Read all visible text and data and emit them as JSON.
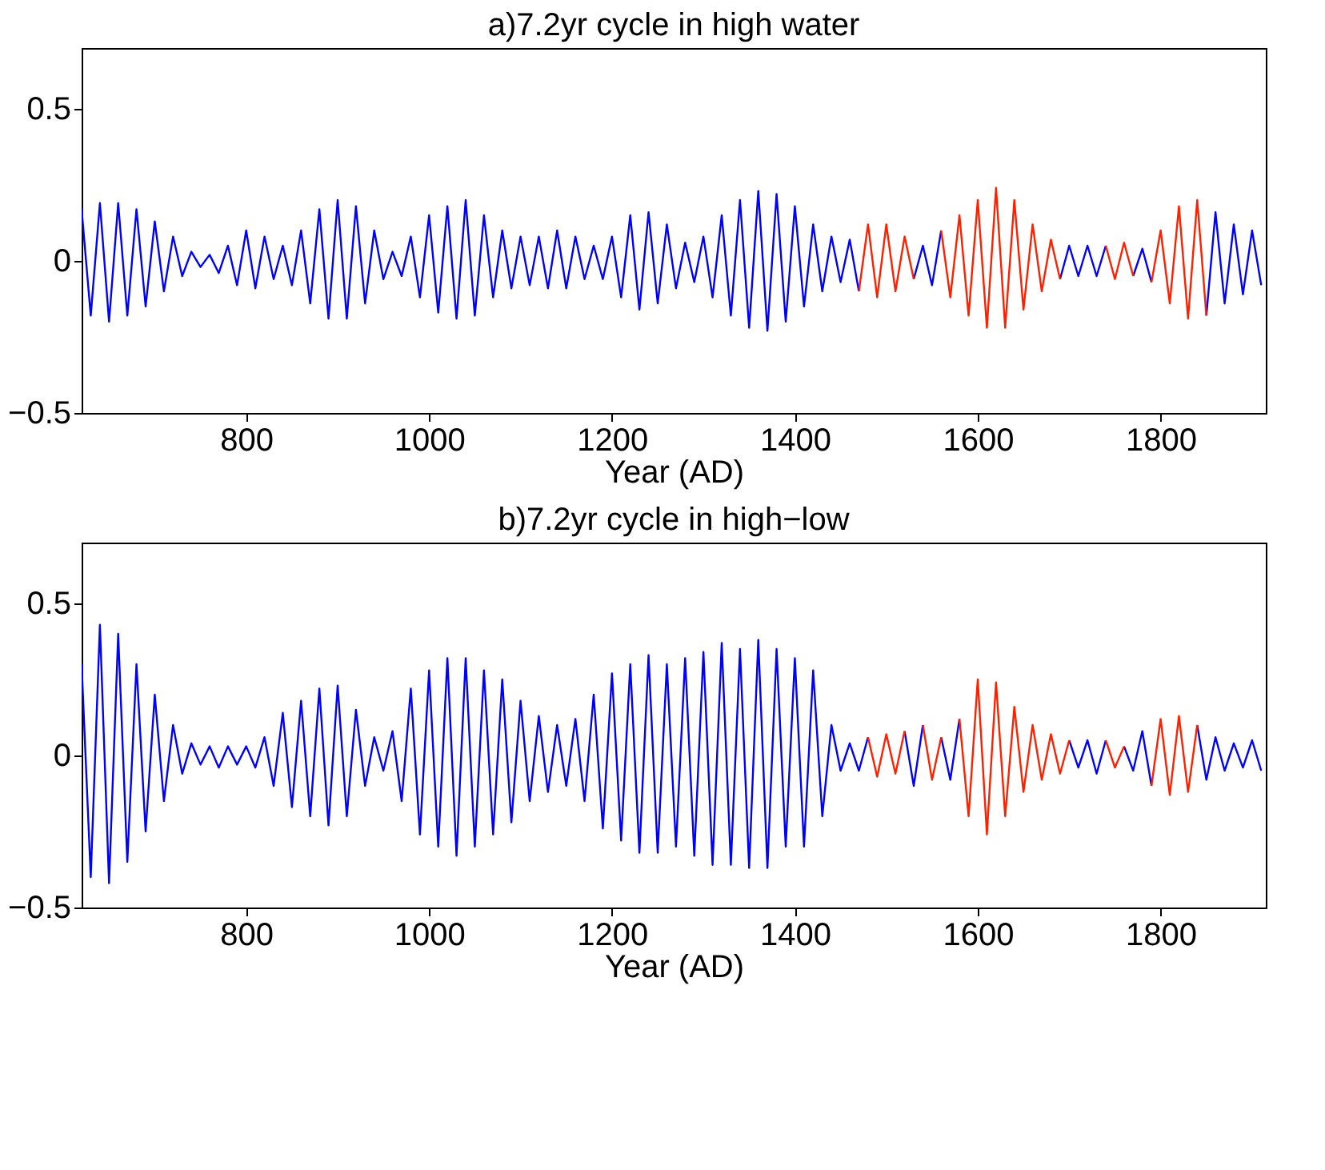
{
  "chart_data": [
    {
      "type": "line",
      "title": "a)7.2yr cycle in high water",
      "xlabel": "Year (AD)",
      "xlim": [
        620,
        1915
      ],
      "xticks": [
        800,
        1000,
        1200,
        1400,
        1600,
        1800
      ],
      "ylim": [
        -0.5,
        0.7
      ],
      "yticks": [
        -0.5,
        0,
        0.5
      ],
      "x": [
        620,
        630,
        640,
        650,
        660,
        670,
        680,
        690,
        700,
        710,
        720,
        730,
        740,
        750,
        760,
        770,
        780,
        790,
        800,
        810,
        820,
        830,
        840,
        850,
        860,
        870,
        880,
        890,
        900,
        910,
        920,
        930,
        940,
        950,
        960,
        970,
        980,
        990,
        1000,
        1010,
        1020,
        1030,
        1040,
        1050,
        1060,
        1070,
        1080,
        1090,
        1100,
        1110,
        1120,
        1130,
        1140,
        1150,
        1160,
        1170,
        1180,
        1190,
        1200,
        1210,
        1220,
        1230,
        1240,
        1250,
        1260,
        1270,
        1280,
        1290,
        1300,
        1310,
        1320,
        1330,
        1340,
        1350,
        1360,
        1370,
        1380,
        1390,
        1400,
        1410,
        1420,
        1430,
        1440,
        1450,
        1460,
        1470,
        1480,
        1490,
        1500,
        1510,
        1520,
        1530,
        1540,
        1550,
        1560,
        1570,
        1580,
        1590,
        1600,
        1610,
        1620,
        1630,
        1640,
        1650,
        1660,
        1670,
        1680,
        1690,
        1700,
        1710,
        1720,
        1730,
        1740,
        1750,
        1760,
        1770,
        1780,
        1790,
        1800,
        1810,
        1820,
        1830,
        1840,
        1850,
        1860,
        1870,
        1880,
        1890,
        1900,
        1910
      ],
      "series": [
        {
          "color": "#0000ff",
          "values": [
            0.17,
            -0.18,
            0.19,
            -0.2,
            0.19,
            -0.18,
            0.17,
            -0.15,
            0.13,
            -0.1,
            0.08,
            -0.05,
            0.03,
            -0.02,
            0.02,
            -0.04,
            0.05,
            -0.08,
            0.1,
            -0.09,
            0.08,
            -0.06,
            0.05,
            -0.08,
            0.1,
            -0.14,
            0.17,
            -0.19,
            0.2,
            -0.19,
            0.18,
            -0.14,
            0.1,
            -0.06,
            0.03,
            -0.05,
            0.08,
            -0.12,
            0.15,
            -0.17,
            0.18,
            -0.19,
            0.2,
            -0.18,
            0.15,
            -0.12,
            0.1,
            -0.09,
            0.08,
            -0.08,
            0.08,
            -0.09,
            0.1,
            -0.09,
            0.08,
            -0.06,
            0.05,
            -0.06,
            0.08,
            -0.12,
            0.15,
            -0.16,
            0.16,
            -0.14,
            0.12,
            -0.09,
            0.06,
            -0.07,
            0.08,
            -0.12,
            0.15,
            -0.18,
            0.2,
            -0.22,
            0.23,
            -0.23,
            0.22,
            -0.2,
            0.18,
            -0.15,
            0.12,
            -0.1,
            0.08,
            -0.07,
            0.07,
            -0.1,
            null,
            null,
            null,
            null,
            null,
            -0.06,
            0.05,
            -0.08,
            0.1,
            null,
            null,
            null,
            null,
            null,
            null,
            null,
            null,
            null,
            null,
            null,
            null,
            -0.06,
            0.05,
            -0.05,
            0.05,
            -0.05,
            0.05,
            null,
            null,
            -0.05,
            0.04,
            -0.07,
            null,
            null,
            null,
            null,
            null,
            -0.18,
            0.16,
            -0.14,
            0.12,
            -0.11,
            0.1,
            -0.08
          ]
        },
        {
          "color": "#ff2000",
          "x": [
            1470,
            1480,
            1490,
            1500,
            1510,
            1520,
            1530,
            1540,
            1550,
            1560,
            1570,
            1580,
            1590,
            1600,
            1610,
            1620,
            1630,
            1640,
            1650,
            1660,
            1670,
            1680,
            1690,
            1700,
            1710,
            1720,
            1730,
            1740,
            1750,
            1760,
            1770,
            1780,
            1790,
            1800,
            1810,
            1820,
            1830,
            1840,
            1850
          ],
          "values": [
            -0.1,
            0.12,
            -0.12,
            0.12,
            -0.1,
            0.08,
            -0.06,
            null,
            null,
            0.1,
            -0.12,
            0.15,
            -0.18,
            0.2,
            -0.22,
            0.24,
            -0.22,
            0.2,
            -0.16,
            0.12,
            -0.1,
            0.07,
            -0.06,
            null,
            null,
            null,
            null,
            0.05,
            -0.06,
            0.06,
            -0.05,
            null,
            -0.07,
            0.1,
            -0.14,
            0.18,
            -0.19,
            0.2,
            -0.18
          ]
        }
      ]
    },
    {
      "type": "line",
      "title": "b)7.2yr cycle in high−low",
      "xlabel": "Year (AD)",
      "xlim": [
        620,
        1915
      ],
      "xticks": [
        800,
        1000,
        1200,
        1400,
        1600,
        1800
      ],
      "ylim": [
        -0.5,
        0.7
      ],
      "yticks": [
        -0.5,
        0,
        0.5
      ],
      "x": [
        620,
        630,
        640,
        650,
        660,
        670,
        680,
        690,
        700,
        710,
        720,
        730,
        740,
        750,
        760,
        770,
        780,
        790,
        800,
        810,
        820,
        830,
        840,
        850,
        860,
        870,
        880,
        890,
        900,
        910,
        920,
        930,
        940,
        950,
        960,
        970,
        980,
        990,
        1000,
        1010,
        1020,
        1030,
        1040,
        1050,
        1060,
        1070,
        1080,
        1090,
        1100,
        1110,
        1120,
        1130,
        1140,
        1150,
        1160,
        1170,
        1180,
        1190,
        1200,
        1210,
        1220,
        1230,
        1240,
        1250,
        1260,
        1270,
        1280,
        1290,
        1300,
        1310,
        1320,
        1330,
        1340,
        1350,
        1360,
        1370,
        1380,
        1390,
        1400,
        1410,
        1420,
        1430,
        1440,
        1450,
        1460,
        1470,
        1480,
        1490,
        1500,
        1510,
        1520,
        1530,
        1540,
        1550,
        1560,
        1570,
        1580,
        1590,
        1600,
        1610,
        1620,
        1630,
        1640,
        1650,
        1660,
        1670,
        1680,
        1690,
        1700,
        1710,
        1720,
        1730,
        1740,
        1750,
        1760,
        1770,
        1780,
        1790,
        1800,
        1810,
        1820,
        1830,
        1840,
        1850,
        1860,
        1870,
        1880,
        1890,
        1900,
        1910
      ],
      "series": [
        {
          "color": "#0000ff",
          "values": [
            0.3,
            -0.4,
            0.43,
            -0.42,
            0.4,
            -0.35,
            0.3,
            -0.25,
            0.2,
            -0.15,
            0.1,
            -0.06,
            0.04,
            -0.03,
            0.03,
            -0.04,
            0.03,
            -0.03,
            0.03,
            -0.04,
            0.06,
            -0.1,
            0.14,
            -0.17,
            0.18,
            -0.2,
            0.22,
            -0.23,
            0.23,
            -0.2,
            0.15,
            -0.1,
            0.06,
            -0.05,
            0.08,
            -0.15,
            0.22,
            -0.26,
            0.28,
            -0.3,
            0.32,
            -0.33,
            0.32,
            -0.3,
            0.28,
            -0.26,
            0.25,
            -0.22,
            0.18,
            -0.15,
            0.13,
            -0.12,
            0.1,
            -0.1,
            0.12,
            -0.15,
            0.2,
            -0.24,
            0.27,
            -0.28,
            0.3,
            -0.32,
            0.33,
            -0.32,
            0.3,
            -0.3,
            0.32,
            -0.33,
            0.34,
            -0.36,
            0.37,
            -0.36,
            0.35,
            -0.37,
            0.38,
            -0.37,
            0.35,
            -0.3,
            0.32,
            -0.3,
            0.28,
            -0.2,
            0.1,
            -0.05,
            0.04,
            -0.05,
            0.06,
            null,
            null,
            null,
            0.08,
            -0.1,
            0.1,
            null,
            0.06,
            -0.08,
            0.12,
            null,
            null,
            null,
            null,
            null,
            null,
            null,
            null,
            null,
            null,
            null,
            0.05,
            -0.04,
            0.05,
            -0.06,
            0.05,
            null,
            0.03,
            -0.05,
            0.08,
            -0.1,
            null,
            null,
            null,
            null,
            0.1,
            -0.08,
            0.06,
            -0.05,
            0.04,
            -0.04,
            0.05,
            -0.05
          ]
        },
        {
          "color": "#ff2000",
          "x": [
            1480,
            1490,
            1500,
            1510,
            1520,
            1530,
            1540,
            1550,
            1560,
            1570,
            1580,
            1590,
            1600,
            1610,
            1620,
            1630,
            1640,
            1650,
            1660,
            1670,
            1680,
            1690,
            1700,
            1710,
            1720,
            1730,
            1740,
            1750,
            1760,
            1770,
            1780,
            1790,
            1800,
            1810,
            1820,
            1830,
            1840
          ],
          "values": [
            0.06,
            -0.07,
            0.07,
            -0.06,
            0.08,
            null,
            0.1,
            -0.08,
            0.06,
            null,
            0.12,
            -0.2,
            0.25,
            -0.26,
            0.24,
            -0.2,
            0.16,
            -0.12,
            0.1,
            -0.08,
            0.07,
            -0.06,
            0.05,
            null,
            null,
            null,
            0.05,
            -0.04,
            0.03,
            null,
            null,
            -0.1,
            0.12,
            -0.13,
            0.13,
            -0.12,
            0.1
          ]
        }
      ]
    }
  ]
}
